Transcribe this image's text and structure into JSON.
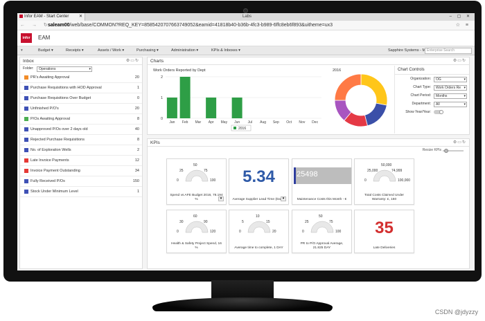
{
  "browser": {
    "active_tab": "Infor EAM - Start Center",
    "inactive_tab": "Labs",
    "url_host": "saleam00",
    "url_path": "/web/base/COMMON?REQ_KEY=8585420707663749052&eamid=41818b40-b36b-4fc3-b989-6ffc8eb6f893&uitheme=ux3"
  },
  "app": {
    "logo": "infor",
    "name": "EAM",
    "menu": [
      "Budget",
      "Receipts",
      "Assets / Work",
      "Purchasing",
      "Administration",
      "KPIs & Inboxes"
    ],
    "user": "Sapphire Systems - MGMT",
    "search_placeholder": "Enterprise Search"
  },
  "inbox": {
    "title": "Inbox",
    "filter_label": "Folder:",
    "filter_value": "Operations",
    "items": [
      {
        "label": "PR's Awaiting Approval",
        "count": "20",
        "color": "#f28c28"
      },
      {
        "label": "Purchase Requisitions with HOD Approval",
        "count": "1",
        "color": "#3f51b5"
      },
      {
        "label": "Purchase Requisitions Over Budget",
        "count": "0",
        "color": "#3f51b5"
      },
      {
        "label": "Unfinished P/O's",
        "count": "20",
        "color": "#3f51b5"
      },
      {
        "label": "P/Os Awaiting Approval",
        "count": "8",
        "color": "#4caf50"
      },
      {
        "label": "Unapproved P/Os over 2 days old",
        "count": "40",
        "color": "#3f51b5"
      },
      {
        "label": "Rejected Purchase Requisitions",
        "count": "8",
        "color": "#3f51b5"
      },
      {
        "label": "No. of Exploration Wells",
        "count": "2",
        "color": "#3f51b5"
      },
      {
        "label": "Late Invoice Payments",
        "count": "12",
        "color": "#e53935"
      },
      {
        "label": "Invoice Payment Outstanding",
        "count": "34",
        "color": "#e53935"
      },
      {
        "label": "Fully Received P/Os",
        "count": "150",
        "color": "#3f51b5"
      },
      {
        "label": "Stock Under Minimum Level",
        "count": "1",
        "color": "#3f51b5"
      }
    ]
  },
  "charts_panel": {
    "title": "Charts",
    "bar_title": "Work Orders Reported by Dept",
    "donut_year": "2016",
    "legend": "2016"
  },
  "chart_data": [
    {
      "type": "bar",
      "title": "Work Orders Reported by Dept",
      "categories": [
        "Jan",
        "Feb",
        "Mar",
        "Apr",
        "May",
        "Jun",
        "Jul",
        "Aug",
        "Sep",
        "Oct",
        "Nov",
        "Dec"
      ],
      "series": [
        {
          "name": "2016",
          "values": [
            1,
            2,
            0,
            1,
            0,
            1,
            0,
            0,
            0,
            0,
            0,
            0
          ]
        }
      ],
      "ylim": [
        0,
        2
      ],
      "yticks": [
        "0",
        "1",
        "2"
      ],
      "color": "#2e9e46"
    },
    {
      "type": "pie",
      "title": "2016",
      "slices": [
        {
          "value": 28,
          "color": "#ffc61a"
        },
        {
          "value": 18,
          "color": "#3b4fa8"
        },
        {
          "value": 15,
          "color": "#e53945"
        },
        {
          "value": 14,
          "color": "#a855c0"
        },
        {
          "value": 25,
          "color": "#ff7a45"
        }
      ]
    }
  ],
  "chart_controls": {
    "title": "Chart Controls",
    "fields": [
      {
        "label": "Organization:",
        "value": "OG"
      },
      {
        "label": "Chart Type:",
        "value": "Work Orders Re"
      },
      {
        "label": "Chart Period:",
        "value": "Months"
      },
      {
        "label": "Department:",
        "value": "All"
      }
    ],
    "toggle_label": "Show Year/Year:"
  },
  "kpis": {
    "title": "KPIs",
    "resize_label": "Resize KPIs",
    "tiles": [
      {
        "kind": "gauge",
        "caption": "Spend vs AFE Budget 2016, 78.194 %",
        "ticks": [
          "25",
          "50",
          "75",
          "0",
          "100"
        ]
      },
      {
        "kind": "big",
        "value": "5.34",
        "color": "#2f5aa8",
        "caption": "Average Supplier Lead Time (Days)"
      },
      {
        "kind": "hbar",
        "value": "25498",
        "caption": "Maintenance Costs this Month - €"
      },
      {
        "kind": "gauge",
        "caption": "Total Costs Claimed Under Warranty: £, 160",
        "ticks": [
          "25,000",
          "50,000",
          "74,999",
          "0",
          "100,000"
        ]
      },
      {
        "kind": "gauge",
        "caption": "Health & Safety Project Spend, 16 %",
        "ticks": [
          "30",
          "60",
          "90",
          "0",
          "120"
        ]
      },
      {
        "kind": "gauge",
        "caption": "Average time to complete, 1 DAY",
        "ticks": [
          "5",
          "10",
          "15",
          "0",
          "20"
        ]
      },
      {
        "kind": "gauge",
        "caption": "PR to P/O Approval Average, 21.825 DAY",
        "ticks": [
          "25",
          "50",
          "75",
          "0",
          "100"
        ]
      },
      {
        "kind": "big",
        "value": "35",
        "color": "#d32f2f",
        "caption": "Late Deliveries"
      }
    ]
  },
  "watermark": "CSDN @jdyzzy"
}
